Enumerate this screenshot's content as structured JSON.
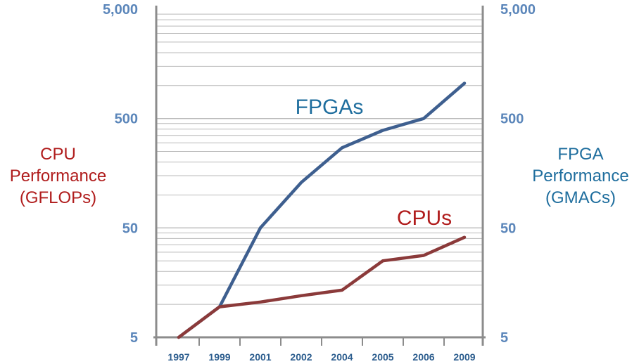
{
  "chart_data": {
    "type": "line",
    "categories": [
      "1997",
      "1999",
      "2001",
      "2002",
      "2004",
      "2005",
      "2006",
      "2009"
    ],
    "y_scale": "log",
    "ylim": [
      5,
      5000
    ],
    "y_ticks": [
      "5,000",
      "500",
      "50",
      "5"
    ],
    "y_tick_values": [
      5000,
      500,
      50,
      5
    ],
    "ylabel_left": [
      "CPU",
      "Performance",
      "(GFLOPs)"
    ],
    "ylabel_right": [
      "FPGA",
      "Performance",
      "(GMACs)"
    ],
    "grid": true,
    "series": [
      {
        "name": "FPGAs",
        "color": "#3e5f8f",
        "label_color": "#1f6e9e",
        "values": [
          5,
          9.5,
          50,
          130,
          270,
          390,
          500,
          1050
        ]
      },
      {
        "name": "CPUs",
        "color": "#8b3a3a",
        "label_color": "#b01c1c",
        "values": [
          5,
          9.5,
          10.5,
          12,
          13.5,
          25,
          28,
          41
        ]
      }
    ],
    "colors": {
      "tick_label": "#5b86ba",
      "grid": "#b9b9b9",
      "axis": "#8c8c8c",
      "year_label": "#2c5d8e"
    }
  }
}
